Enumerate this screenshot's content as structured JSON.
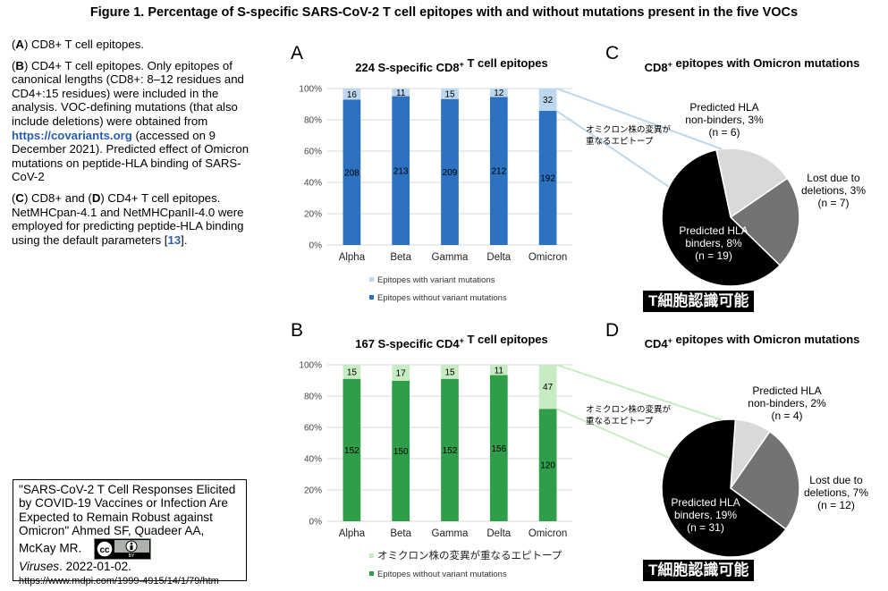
{
  "figure_title": "Figure 1. Percentage of S-specific SARS-CoV-2 T cell epitopes with and without mutations present in the five VOCs",
  "caption": {
    "p1_letter": "A",
    "p1_text": " CD8+ T cell epitopes.",
    "p2_letter": "B",
    "p2_text": " CD4+ T cell epitopes. Only epitopes of canonical lengths (CD8+: 8–12 residues and CD4+:15 residues) were included in the analysis. VOC-defining mutations (that also include deletions) were obtained from ",
    "p2_link": "https://covariants.org",
    "p2_text2": " (accessed on 9 December 2021). Predicted effect of Omicron mutations on peptide-HLA binding of SARS-CoV-2",
    "p3_letter1": "C",
    "p3_mid": " CD8+ and (",
    "p3_letter2": "D",
    "p3_text": " CD4+ T cell epitopes. NetMHCpan-4.1 and NetMHCpanII-4.0 were employed for predicting peptide-HLA binding using the default parameters [",
    "p3_ref": "13",
    "p3_end": "]."
  },
  "citation": {
    "text": "\"SARS-CoV-2 T Cell Responses Elicited by COVID-19 Vaccines or Infection Are Expected to Remain Robust against Omicron\" Ahmed SF, Quadeer AA, McKay MR.",
    "journal": "Viruses",
    "date": ". 2022-01-02.",
    "url": "https://www.mdpi.com/1999-4915/14/1/79/htm",
    "badge_cc": "cc",
    "badge_by": "BY"
  },
  "panel_letters": {
    "a": "A",
    "b": "B",
    "c": "C",
    "d": "D"
  },
  "chart_data": [
    {
      "id": "A",
      "type": "bar",
      "stacked": "percent",
      "title": "224 S-specific CD8+ T cell epitopes",
      "categories": [
        "Alpha",
        "Beta",
        "Gamma",
        "Delta",
        "Omicron"
      ],
      "series": [
        {
          "name": "Epitopes without variant mutations",
          "color": "#2c72c0",
          "values": [
            208,
            213,
            209,
            212,
            192
          ]
        },
        {
          "name": "Epitopes with variant mutations",
          "color": "#bdd7ee",
          "values": [
            16,
            11,
            15,
            12,
            32
          ]
        }
      ],
      "yticks": [
        "0%",
        "20%",
        "40%",
        "60%",
        "80%",
        "100%"
      ],
      "ylim": [
        0,
        100
      ],
      "legend": [
        "Epitopes with variant mutations",
        "Epitopes without variant mutations"
      ],
      "annotation_jp": [
        "オミクロン株の変異が",
        "重なるエピトープ"
      ]
    },
    {
      "id": "B",
      "type": "bar",
      "stacked": "percent",
      "title": "167 S-specific CD4+ T cell epitopes",
      "categories": [
        "Alpha",
        "Beta",
        "Gamma",
        "Delta",
        "Omicron"
      ],
      "series": [
        {
          "name": "Epitopes without variant mutations",
          "color": "#2f9e48",
          "values": [
            152,
            150,
            152,
            156,
            120
          ]
        },
        {
          "name": "オミクロン株の変異が重なるエピトープ",
          "color": "#c7ebc3",
          "values": [
            15,
            17,
            15,
            11,
            47
          ]
        }
      ],
      "yticks": [
        "0%",
        "20%",
        "40%",
        "60%",
        "80%",
        "100%"
      ],
      "ylim": [
        0,
        100
      ],
      "legend": [
        "オミクロン株の変異が重なるエピトープ",
        "Epitopes without variant mutations"
      ],
      "annotation_jp": [
        "オミクロン株の変異が",
        "重なるエピトープ"
      ]
    },
    {
      "id": "C",
      "type": "pie",
      "title": "CD8+ epitopes with Omicron mutations",
      "slices": [
        {
          "label": [
            "Predicted HLA",
            "non-binders, 3%",
            "(n = 6)"
          ],
          "value": 6,
          "color": "#d9d9d9"
        },
        {
          "label": [
            "Lost due to",
            "deletions, 3%",
            "(n = 7)"
          ],
          "value": 7,
          "color": "#737373"
        },
        {
          "label": [
            "Predicted HLA",
            "binders, 8%",
            "(n = 19)"
          ],
          "value": 19,
          "color": "#000000"
        }
      ],
      "banner_jp": "T細胞認識可能"
    },
    {
      "id": "D",
      "type": "pie",
      "title": "CD4+ epitopes with Omicron mutations",
      "slices": [
        {
          "label": [
            "Predicted HLA",
            "non-binders, 2%",
            "(n = 4)"
          ],
          "value": 4,
          "color": "#d9d9d9"
        },
        {
          "label": [
            "Lost due to",
            "deletions, 7%",
            "(n = 12)"
          ],
          "value": 12,
          "color": "#737373"
        },
        {
          "label": [
            "Predicted HLA",
            "binders, 19%",
            "(n = 31)"
          ],
          "value": 31,
          "color": "#000000"
        }
      ],
      "banner_jp": "T細胞認識可能"
    }
  ]
}
